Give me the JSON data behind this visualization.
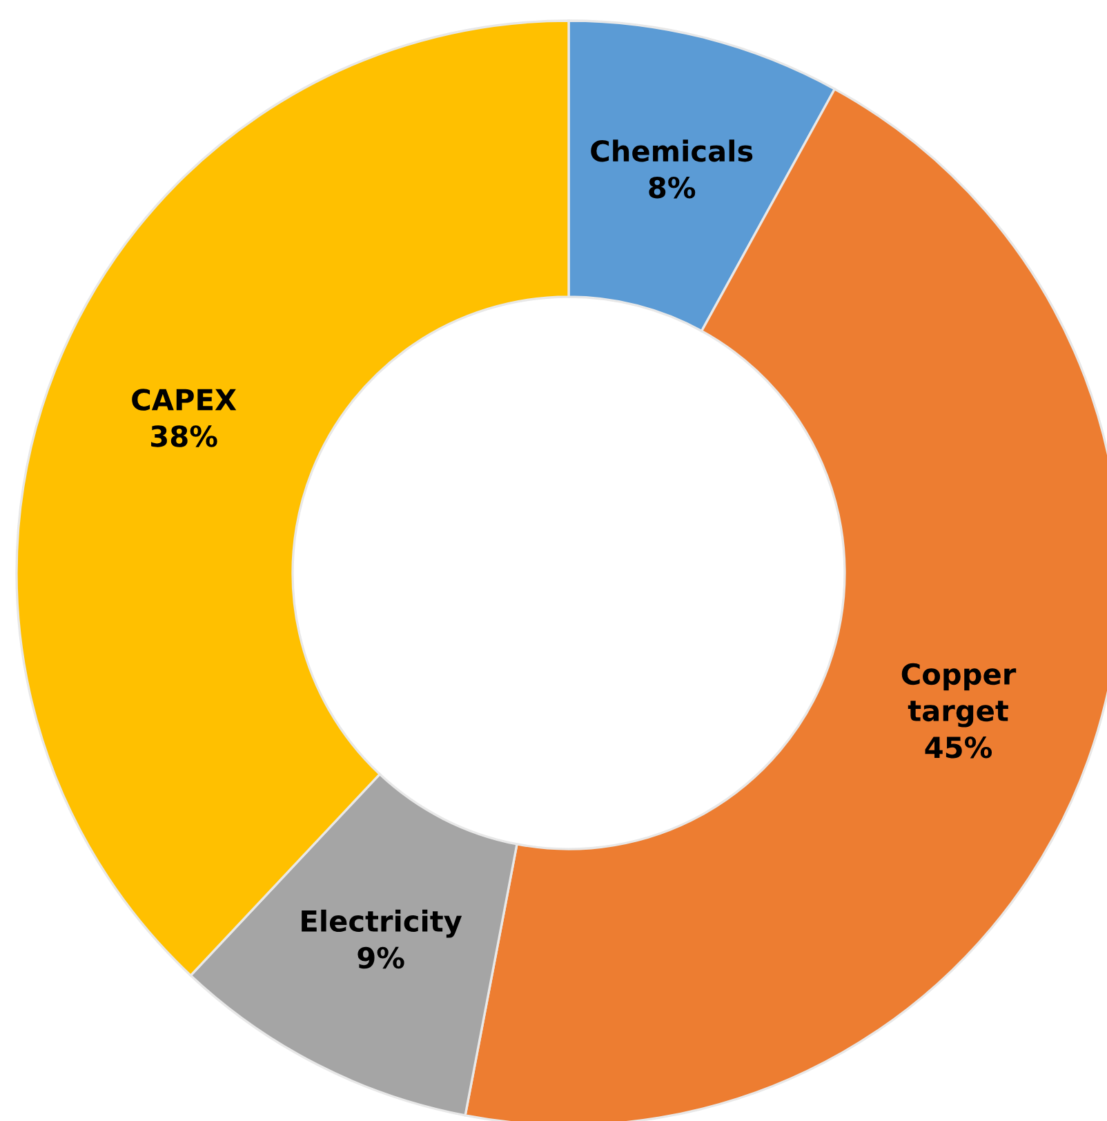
{
  "chart_data": {
    "type": "donut",
    "categories": [
      "Chemicals",
      "Copper\ntarget",
      "Electricity",
      "CAPEX"
    ],
    "values": [
      8,
      45,
      9,
      38
    ],
    "colors": [
      "#5b9bd5",
      "#ed7d31",
      "#a5a5a5",
      "#ffc000"
    ],
    "value_labels": [
      "8%",
      "45%",
      "9%",
      "38%"
    ]
  }
}
